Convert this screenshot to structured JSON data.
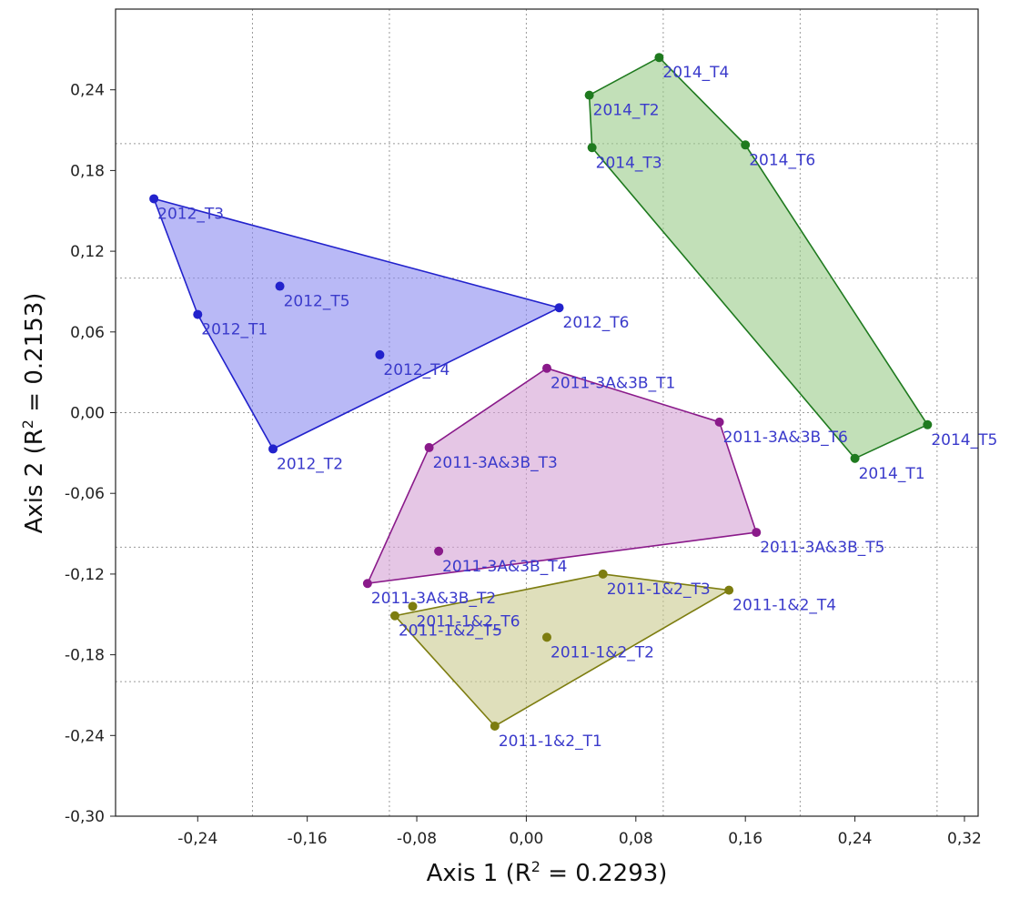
{
  "chart_data": {
    "type": "scatter",
    "title": "",
    "xlabel": "Axis 1 (R",
    "xlabel_sup": "2",
    "xlabel_end": " = 0.2293)",
    "ylabel": "Axis 2 (R",
    "ylabel_sup": "2",
    "ylabel_end": " = 0.2153)",
    "xlim": [
      -0.3,
      0.33
    ],
    "ylim": [
      -0.3,
      0.3
    ],
    "x_ticks": [
      -0.24,
      -0.16,
      -0.08,
      0.0,
      0.08,
      0.16,
      0.24,
      0.32
    ],
    "x_tick_labels": [
      "-0,24",
      "-0,16",
      "-0,08",
      "0,00",
      "0,08",
      "0,16",
      "0,24",
      "0,32"
    ],
    "y_ticks": [
      0.24,
      0.18,
      0.12,
      0.06,
      0.0,
      -0.06,
      -0.12,
      -0.18,
      -0.24,
      -0.3
    ],
    "y_tick_labels": [
      "0,24",
      "0,18",
      "0,12",
      "0,06",
      "0,00",
      "-0,06",
      "-0,12",
      "-0,18",
      "-0,24",
      "-0,30"
    ],
    "x_grid": [
      -0.2,
      -0.1,
      0.0,
      0.1,
      0.2,
      0.3
    ],
    "y_grid": [
      0.2,
      0.1,
      0.0,
      -0.1,
      -0.2
    ],
    "grid": true,
    "label_color": "#3a3acb",
    "series": [
      {
        "key": "g2014",
        "color": "#1f7a1f",
        "fill": "#99cc88",
        "points": [
          {
            "label": "2014_T4",
            "x": 0.097,
            "y": 0.264
          },
          {
            "label": "2014_T2",
            "x": 0.046,
            "y": 0.236
          },
          {
            "label": "2014_T3",
            "x": 0.048,
            "y": 0.197
          },
          {
            "label": "2014_T6",
            "x": 0.16,
            "y": 0.199
          },
          {
            "label": "2014_T5",
            "x": 0.293,
            "y": -0.009
          },
          {
            "label": "2014_T1",
            "x": 0.24,
            "y": -0.034
          }
        ],
        "hull": [
          "2014_T4",
          "2014_T6",
          "2014_T5",
          "2014_T1",
          "2014_T3",
          "2014_T2"
        ]
      },
      {
        "key": "g2012",
        "color": "#2222cc",
        "fill": "#8a8af0",
        "points": [
          {
            "label": "2012_T3",
            "x": -0.272,
            "y": 0.159
          },
          {
            "label": "2012_T5",
            "x": -0.18,
            "y": 0.094
          },
          {
            "label": "2012_T1",
            "x": -0.24,
            "y": 0.073
          },
          {
            "label": "2012_T6",
            "x": 0.024,
            "y": 0.078
          },
          {
            "label": "2012_T4",
            "x": -0.107,
            "y": 0.043
          },
          {
            "label": "2012_T2",
            "x": -0.185,
            "y": -0.027
          }
        ],
        "hull": [
          "2012_T3",
          "2012_T6",
          "2012_T2",
          "2012_T1"
        ]
      },
      {
        "key": "g2011_3a3b",
        "color": "#8a1a8a",
        "fill": "#d4a0d4",
        "points": [
          {
            "label": "2011-3A&3B_T1",
            "x": 0.015,
            "y": 0.033
          },
          {
            "label": "2011-3A&3B_T6",
            "x": 0.141,
            "y": -0.007
          },
          {
            "label": "2011-3A&3B_T3",
            "x": -0.071,
            "y": -0.026
          },
          {
            "label": "2011-3A&3B_T5",
            "x": 0.168,
            "y": -0.089
          },
          {
            "label": "2011-3A&3B_T4",
            "x": -0.064,
            "y": -0.103
          },
          {
            "label": "2011-3A&3B_T2",
            "x": -0.116,
            "y": -0.127
          }
        ],
        "hull": [
          "2011-3A&3B_T1",
          "2011-3A&3B_T6",
          "2011-3A&3B_T5",
          "2011-3A&3B_T2",
          "2011-3A&3B_T3"
        ]
      },
      {
        "key": "g2011_12",
        "color": "#7d7d10",
        "fill": "#c9c98e",
        "points": [
          {
            "label": "2011-1&2_T3",
            "x": 0.056,
            "y": -0.12
          },
          {
            "label": "2011-1&2_T4",
            "x": 0.148,
            "y": -0.132
          },
          {
            "label": "2011-1&2_T6",
            "x": -0.083,
            "y": -0.144
          },
          {
            "label": "2011-1&2_T5",
            "x": -0.096,
            "y": -0.151
          },
          {
            "label": "2011-1&2_T2",
            "x": 0.015,
            "y": -0.167
          },
          {
            "label": "2011-1&2_T1",
            "x": -0.023,
            "y": -0.233
          }
        ],
        "hull": [
          "2011-1&2_T3",
          "2011-1&2_T4",
          "2011-1&2_T1",
          "2011-1&2_T5"
        ]
      }
    ]
  }
}
